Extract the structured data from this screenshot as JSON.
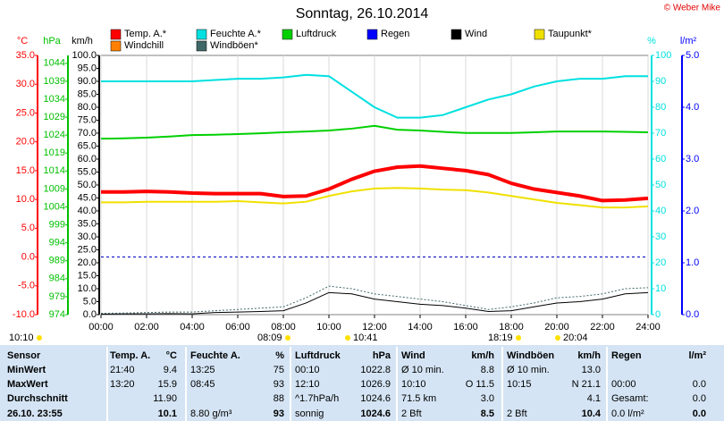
{
  "chart_data": {
    "type": "line",
    "title": "Sonntag, 26.10.2014",
    "copyright": "© Weber Mike",
    "xlim": [
      0,
      24
    ],
    "xticks": [
      {
        "value": 0,
        "label": "00:00"
      },
      {
        "value": 2,
        "label": "02:00"
      },
      {
        "value": 4,
        "label": "04:00"
      },
      {
        "value": 6,
        "label": "06:00"
      },
      {
        "value": 8,
        "label": "08:00"
      },
      {
        "value": 10,
        "label": "10:00"
      },
      {
        "value": 12,
        "label": "12:00"
      },
      {
        "value": 14,
        "label": "14:00"
      },
      {
        "value": 16,
        "label": "16:00"
      },
      {
        "value": 18,
        "label": "18:00"
      },
      {
        "value": 20,
        "label": "20:00"
      },
      {
        "value": 22,
        "label": "22:00"
      },
      {
        "value": 24,
        "label": "24:00"
      }
    ],
    "grid": true,
    "axes": [
      {
        "label": "°C",
        "color": "#ff0000",
        "lim": [
          -10,
          35
        ],
        "ticks": [
          {
            "value": -10,
            "label": "-10.0"
          },
          {
            "value": -5,
            "label": "-5.0"
          },
          {
            "value": 0,
            "label": "0.0"
          },
          {
            "value": 5,
            "label": "5.0"
          },
          {
            "value": 10,
            "label": "10.0"
          },
          {
            "value": 15,
            "label": "15.0"
          },
          {
            "value": 20,
            "label": "20.0"
          },
          {
            "value": 25,
            "label": "25.0"
          },
          {
            "value": 30,
            "label": "30.0"
          },
          {
            "value": 35,
            "label": "35.0"
          }
        ]
      },
      {
        "label": "hPa",
        "color": "#00c000",
        "lim": [
          974,
          1046.2
        ],
        "ticks": [
          974,
          979,
          984,
          989,
          994,
          999,
          1004,
          1009,
          1014,
          1019,
          1024,
          1029,
          1034,
          1039,
          1044
        ]
      },
      {
        "label": "km/h",
        "color": "#000000",
        "lim": [
          0,
          100
        ],
        "ticks": [
          {
            "value": 0,
            "label": "0.0"
          },
          {
            "value": 5,
            "label": "5.0"
          },
          {
            "value": 10,
            "label": "10.0"
          },
          {
            "value": 15,
            "label": "15.0"
          },
          {
            "value": 20,
            "label": "20.0"
          },
          {
            "value": 25,
            "label": "25.0"
          },
          {
            "value": 30,
            "label": "30.0"
          },
          {
            "value": 35,
            "label": "35.0"
          },
          {
            "value": 40,
            "label": "40.0"
          },
          {
            "value": 45,
            "label": "45.0"
          },
          {
            "value": 50,
            "label": "50.0"
          },
          {
            "value": 55,
            "label": "55.0"
          },
          {
            "value": 60,
            "label": "60.0"
          },
          {
            "value": 65,
            "label": "65.0"
          },
          {
            "value": 70,
            "label": "70.0"
          },
          {
            "value": 75,
            "label": "75.0"
          },
          {
            "value": 80,
            "label": "80.0"
          },
          {
            "value": 85,
            "label": "85.0"
          },
          {
            "value": 90,
            "label": "90.0"
          },
          {
            "value": 95,
            "label": "95.0"
          },
          {
            "value": 100,
            "label": "100.0"
          }
        ]
      },
      {
        "label": "%",
        "color": "#00e0e0",
        "lim": [
          0,
          100
        ],
        "ticks": [
          0,
          10,
          20,
          30,
          40,
          50,
          60,
          70,
          80,
          90,
          100
        ]
      },
      {
        "label": "l/m²",
        "color": "#0000ff",
        "lim": [
          0,
          5
        ],
        "ticks": [
          {
            "value": 0,
            "label": "0.0"
          },
          {
            "value": 1,
            "label": "1.0"
          },
          {
            "value": 2,
            "label": "2.0"
          },
          {
            "value": 3,
            "label": "3.0"
          },
          {
            "value": 4,
            "label": "4.0"
          },
          {
            "value": 5,
            "label": "5.0"
          }
        ]
      }
    ],
    "x": [
      0,
      1,
      2,
      3,
      4,
      5,
      6,
      7,
      8,
      9,
      10,
      11,
      12,
      13,
      14,
      15,
      16,
      17,
      18,
      19,
      20,
      21,
      22,
      23,
      24
    ],
    "series": [
      {
        "name": "Temp. A.*",
        "color": "#ff0000",
        "axis": 0,
        "values": [
          11.3,
          11.3,
          11.4,
          11.3,
          11.1,
          11.0,
          11.0,
          11.0,
          10.5,
          10.6,
          11.8,
          13.5,
          14.9,
          15.6,
          15.8,
          15.4,
          15.0,
          14.3,
          12.8,
          11.8,
          11.2,
          10.6,
          9.8,
          9.9,
          10.2
        ]
      },
      {
        "name": "Feuchte A.*",
        "color": "#00e0e0",
        "axis": 3,
        "values": [
          90,
          90,
          90,
          90,
          90,
          90.5,
          91,
          91,
          91.5,
          92.5,
          92,
          86,
          80,
          76,
          76,
          77,
          80,
          83,
          85,
          88,
          90,
          91,
          91,
          92,
          92
        ]
      },
      {
        "name": "Luftdruck",
        "color": "#00d000",
        "axis": 1,
        "values": [
          1023.0,
          1023.1,
          1023.3,
          1023.6,
          1024.0,
          1024.1,
          1024.3,
          1024.5,
          1024.8,
          1025.0,
          1025.3,
          1025.8,
          1026.6,
          1025.5,
          1025.3,
          1024.9,
          1024.6,
          1024.6,
          1024.6,
          1024.8,
          1025.0,
          1025.0,
          1025.0,
          1024.9,
          1024.8
        ]
      },
      {
        "name": "Regen",
        "color": "#0000ff",
        "axis": 4
      },
      {
        "name": "Wind",
        "color": "#000000",
        "axis": 2,
        "values": [
          0.2,
          0.3,
          0.3,
          0.4,
          0.3,
          0.8,
          1.0,
          1.2,
          1.5,
          4.5,
          8.5,
          8,
          6,
          5,
          4,
          3.5,
          2.5,
          1.2,
          1.5,
          3,
          4.5,
          5,
          6,
          8,
          8.5
        ]
      },
      {
        "name": "Taupunkt*",
        "color": "#f0e000",
        "axis": 0,
        "values": [
          9.5,
          9.5,
          9.6,
          9.6,
          9.6,
          9.6,
          9.7,
          9.5,
          9.3,
          9.6,
          10.6,
          11.4,
          11.9,
          12.0,
          11.9,
          11.7,
          11.6,
          11.2,
          10.6,
          10.0,
          9.4,
          9.0,
          8.6,
          8.6,
          8.8
        ]
      },
      {
        "name": "Windchill",
        "color": "#ff8000",
        "axis": 0
      },
      {
        "name": "Windböen*",
        "color": "#406868",
        "axis": 2,
        "dashed": true,
        "values": [
          0.5,
          0.6,
          0.8,
          1.0,
          1.0,
          1.5,
          2,
          2.5,
          3,
          6.5,
          11,
          10,
          8,
          7,
          6,
          5,
          3.5,
          2,
          3,
          4.5,
          6.5,
          7,
          8,
          10,
          10.4
        ]
      }
    ],
    "sun_markers": [
      "10:10",
      "08:09",
      "10:41",
      "18:19",
      "20:04"
    ]
  },
  "table": {
    "header": [
      "Sensor",
      "Temp. A.",
      "°C",
      "Feuchte A.",
      "%",
      "Luftdruck",
      "hPa",
      "Wind",
      "km/h",
      "Windböen",
      "km/h",
      "Regen",
      "l/m²"
    ],
    "rows": [
      [
        "MinWert",
        "21:40",
        "9.4",
        "13:25",
        "75",
        "00:10",
        "1022.8",
        "Ø 10 min.",
        "8.8",
        "Ø 10 min.",
        "13.0",
        null,
        null
      ],
      [
        "MaxWert",
        "13:20",
        "15.9",
        "08:45",
        "93",
        "12:10",
        "1026.9",
        "10:10",
        "O 11.5",
        "10:15",
        "N 21.1",
        "00:00",
        "0.0"
      ],
      [
        "Durchschnitt",
        null,
        "11.90",
        null,
        "88",
        "^1.7hPa/h",
        "1024.6",
        "71.5 km",
        "3.0",
        null,
        "4.1",
        "Gesamt:",
        "0.0"
      ],
      [
        "26.10. 23:55",
        null,
        "10.1",
        "8.80 g/m³",
        "93",
        "sonnig",
        "1024.6",
        "2 Bft",
        "8.5",
        "2 Bft",
        "10.4",
        "0.0 l/m²",
        "0.0"
      ]
    ]
  }
}
